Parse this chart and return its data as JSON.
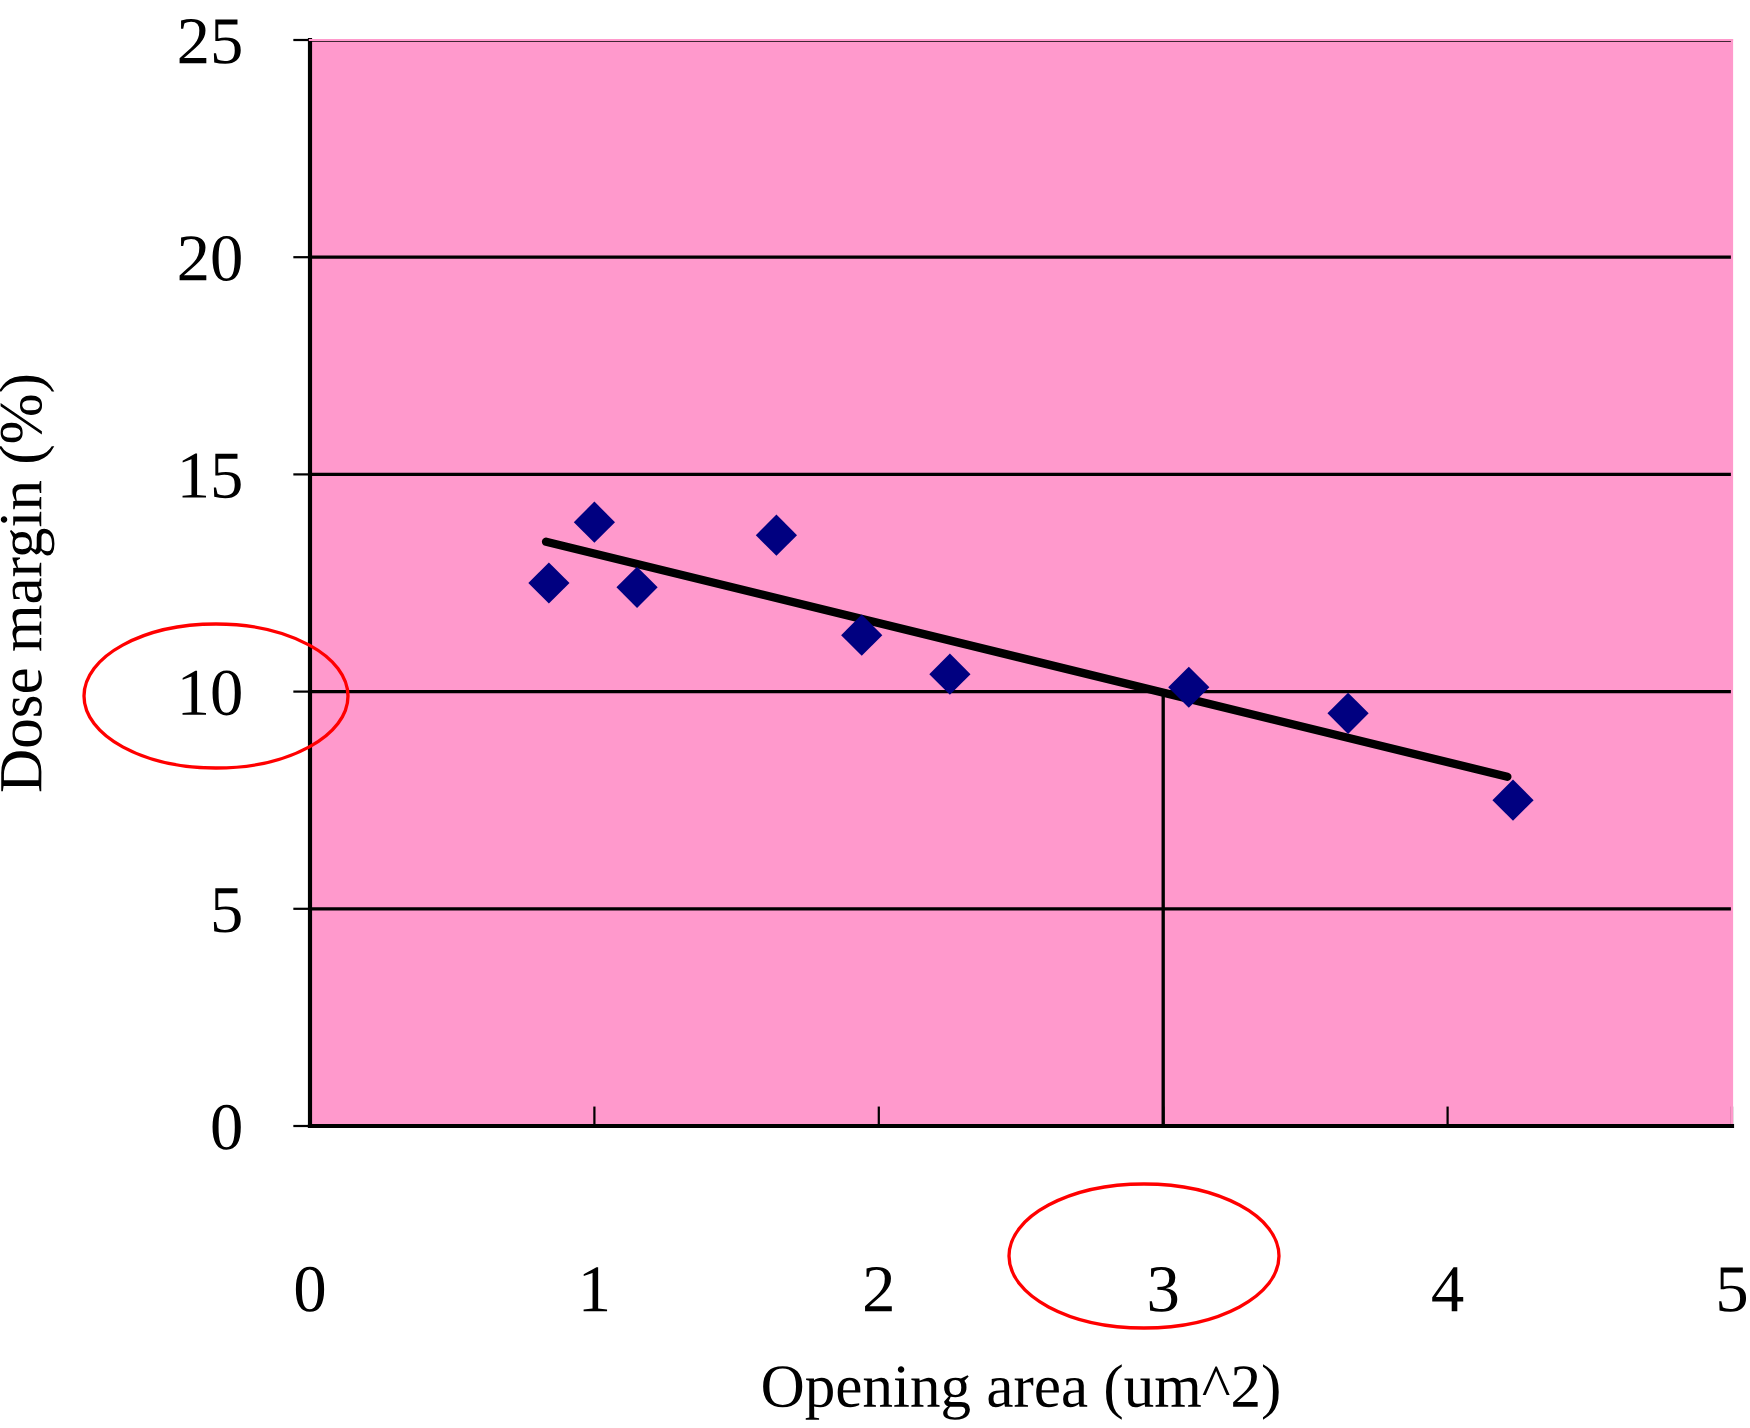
{
  "chart_data": {
    "type": "scatter",
    "xlabel": "Opening area (um^2)",
    "ylabel": "Dose margin (%)",
    "xlim": [
      0,
      5
    ],
    "xticks": [
      0,
      1,
      2,
      3,
      4,
      5
    ],
    "ylim": [
      0,
      25
    ],
    "yticks": [
      0,
      5,
      10,
      15,
      20,
      25
    ],
    "grid": "y",
    "legend": false,
    "series": [
      {
        "color": "#000080",
        "marker": "diamond",
        "x": [
          0.84,
          1.0,
          1.15,
          1.64,
          1.94,
          2.25,
          3.09,
          3.65,
          4.23
        ],
        "values": [
          12.5,
          13.9,
          12.4,
          13.6,
          11.3,
          10.4,
          10.1,
          9.5,
          7.5
        ]
      },
      {
        "type": "line",
        "color": "#000000",
        "marker": "none",
        "x": [
          0.83,
          4.21
        ],
        "values": [
          13.45,
          8.04
        ]
      },
      {
        "type": "line",
        "color": "#000000",
        "marker": "none",
        "x": [
          3,
          3
        ],
        "values": [
          0,
          10
        ]
      }
    ]
  }
}
